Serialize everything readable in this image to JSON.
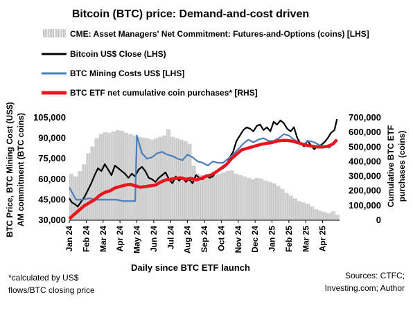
{
  "chart_data": {
    "type": "line",
    "title": "Bitcoin (BTC) price: Demand-and-cost driven",
    "xlabel": "Daily since BTC ETF launch",
    "ylabel_left": "BTC Price, BTC Mining Cost (US$)\nAM commitment (BTC coins)",
    "ylabel_right": "Cumulative BTC ETF\npurchases (coins)",
    "ylim_left": [
      30000,
      105000
    ],
    "yticks_left": [
      "30,000",
      "45,000",
      "60,000",
      "75,000",
      "90,000",
      "105,000"
    ],
    "ylim_right": [
      0,
      700000
    ],
    "yticks_right": [
      "0",
      "100,000",
      "200,000",
      "300,000",
      "400,000",
      "500,000",
      "600,000",
      "700,000"
    ],
    "x_tick_labels": [
      "Jan 24",
      "Feb 24",
      "Mar 24",
      "Apr 24",
      "May 24",
      "Jun 24",
      "Jul 24",
      "Aug 24",
      "Sep 24",
      "Oct 24",
      "Nov 24",
      "Dec 24",
      "Jan 25",
      "Feb 25",
      "Mar 25",
      "Apr 25"
    ],
    "x_month_index": [
      0,
      1,
      2,
      3,
      4,
      5,
      6,
      7,
      8,
      9,
      10,
      11,
      12,
      13,
      14,
      15
    ],
    "x_max_month": 16.0,
    "footnote": "*calculated by US$\nflows/BTC closing price",
    "sources": "Sources: CTFC;\nInvesting.com; Author",
    "legend": [
      {
        "label": "CME: Asset Managers' Net Commitment: Futures-and-Options (coins) [LHS]",
        "style": "bars",
        "color": "#c8c8c8"
      },
      {
        "label": "Bitcoin US$ Close (LHS)",
        "style": "line",
        "color": "#000000"
      },
      {
        "label": "BTC Mining Costs US$ [LHS]",
        "style": "line",
        "color": "#4a7ebb"
      },
      {
        "label": "BTC ETF net cumulative coin purchases* [RHS]",
        "style": "line",
        "color": "#e8141e"
      }
    ],
    "series": [
      {
        "name": "CME: Asset Managers' Net Commitment: Futures-and-Options (coins) [LHS]",
        "axis": "left",
        "style": "bars",
        "color": "#c8c8c8",
        "x": [
          0.0,
          0.25,
          0.5,
          0.75,
          1.0,
          1.25,
          1.5,
          1.75,
          2.0,
          2.25,
          2.5,
          2.75,
          3.0,
          3.25,
          3.5,
          3.75,
          4.0,
          4.25,
          4.5,
          4.75,
          5.0,
          5.25,
          5.5,
          5.75,
          6.0,
          6.25,
          6.5,
          6.75,
          7.0,
          7.25,
          7.5,
          7.75,
          8.0,
          8.25,
          8.5,
          8.75,
          9.0,
          9.25,
          9.5,
          9.75,
          10.0,
          10.25,
          10.5,
          10.75,
          11.0,
          11.25,
          11.5,
          11.75,
          12.0,
          12.25,
          12.5,
          12.75,
          13.0,
          13.25,
          13.5,
          13.75,
          14.0,
          14.25,
          14.5,
          14.75,
          15.0,
          15.25,
          15.5,
          15.75
        ],
        "values": [
          64000,
          62000,
          66000,
          71000,
          79000,
          84000,
          90000,
          93000,
          94500,
          94000,
          95000,
          96000,
          95500,
          94000,
          93000,
          92000,
          91000,
          90500,
          90000,
          89000,
          90000,
          91000,
          92000,
          96500,
          91000,
          90000,
          89000,
          88000,
          86000,
          70000,
          64000,
          63000,
          62000,
          62500,
          63000,
          64000,
          65000,
          66000,
          66500,
          64000,
          63000,
          62000,
          61000,
          60000,
          61000,
          60500,
          59000,
          58000,
          57000,
          55000,
          53000,
          50000,
          48000,
          46000,
          44000,
          43000,
          42000,
          40000,
          38000,
          37000,
          36000,
          35000,
          36500,
          34000
        ]
      },
      {
        "name": "Bitcoin US$ Close (LHS)",
        "axis": "left",
        "style": "line",
        "color": "#000000",
        "x": [
          0.0,
          0.15,
          0.3,
          0.5,
          0.7,
          0.9,
          1.1,
          1.3,
          1.5,
          1.7,
          1.9,
          2.1,
          2.3,
          2.5,
          2.7,
          2.9,
          3.1,
          3.3,
          3.5,
          3.7,
          3.9,
          4.1,
          4.3,
          4.5,
          4.7,
          4.9,
          5.1,
          5.3,
          5.5,
          5.7,
          5.9,
          6.1,
          6.3,
          6.5,
          6.7,
          6.9,
          7.1,
          7.3,
          7.5,
          7.7,
          7.9,
          8.1,
          8.3,
          8.5,
          8.7,
          8.9,
          9.1,
          9.3,
          9.5,
          9.7,
          9.9,
          10.1,
          10.3,
          10.5,
          10.7,
          10.9,
          11.1,
          11.3,
          11.5,
          11.7,
          11.9,
          12.1,
          12.3,
          12.5,
          12.7,
          12.9,
          13.1,
          13.3,
          13.5,
          13.7,
          13.9,
          14.1,
          14.3,
          14.5,
          14.7,
          14.9,
          15.1,
          15.3,
          15.5,
          15.7,
          15.85
        ],
        "values": [
          46000,
          43000,
          42000,
          40000,
          43500,
          47000,
          52000,
          57000,
          63000,
          68000,
          66000,
          71000,
          67000,
          63000,
          70000,
          68000,
          66000,
          64000,
          61000,
          64000,
          62000,
          67000,
          69000,
          66000,
          61000,
          60000,
          58000,
          61000,
          63000,
          65000,
          60000,
          57000,
          62000,
          59000,
          61000,
          58000,
          60000,
          57000,
          63000,
          61000,
          60000,
          63000,
          61000,
          62000,
          66000,
          67000,
          68000,
          70000,
          76000,
          80000,
          88000,
          92000,
          96000,
          98000,
          97000,
          95000,
          99000,
          100000,
          96000,
          98000,
          95000,
          102000,
          100000,
          103000,
          101000,
          97000,
          95000,
          98000,
          90000,
          86000,
          84000,
          88000,
          85000,
          82000,
          84000,
          85000,
          87000,
          90000,
          94000,
          96000,
          104000
        ]
      },
      {
        "name": "BTC Mining Costs US$ [LHS]",
        "axis": "left",
        "style": "line",
        "color": "#4a7ebb",
        "x": [
          0.0,
          0.4,
          0.8,
          1.2,
          1.6,
          2.0,
          2.4,
          2.8,
          3.2,
          3.5,
          3.9,
          4.0,
          4.3,
          4.6,
          4.9,
          5.2,
          5.5,
          5.8,
          6.1,
          6.4,
          6.7,
          7.0,
          7.3,
          7.6,
          7.9,
          8.2,
          8.5,
          8.8,
          9.1,
          9.4,
          9.7,
          10.0,
          10.3,
          10.6,
          10.9,
          11.2,
          11.5,
          11.8,
          12.1,
          12.4,
          12.7,
          13.0,
          13.3,
          13.6,
          13.9,
          14.2,
          14.5,
          14.8,
          15.1,
          15.4,
          15.7,
          15.85
        ],
        "values": [
          54000,
          45000,
          45000,
          46000,
          45000,
          45000,
          45000,
          45000,
          44000,
          44000,
          44000,
          92000,
          79000,
          75000,
          76000,
          79000,
          80000,
          78000,
          77000,
          75000,
          74000,
          78000,
          76000,
          73000,
          72000,
          70000,
          73000,
          72000,
          72000,
          75000,
          78000,
          82000,
          86000,
          89000,
          87000,
          89000,
          90000,
          88000,
          88000,
          90000,
          93000,
          92000,
          89000,
          87000,
          86000,
          88000,
          87000,
          85000,
          84000,
          83000,
          87000,
          89000
        ]
      },
      {
        "name": "BTC ETF net cumulative coin purchases* [RHS]",
        "axis": "right",
        "style": "line",
        "color": "#e8141e",
        "x": [
          0.0,
          0.3,
          0.6,
          0.9,
          1.2,
          1.5,
          1.8,
          2.1,
          2.4,
          2.7,
          3.0,
          3.3,
          3.6,
          3.9,
          4.2,
          4.5,
          4.8,
          5.1,
          5.4,
          5.7,
          6.0,
          6.3,
          6.6,
          6.9,
          7.2,
          7.5,
          7.8,
          8.1,
          8.4,
          8.7,
          9.0,
          9.3,
          9.6,
          9.9,
          10.2,
          10.5,
          10.8,
          11.1,
          11.4,
          11.7,
          12.0,
          12.3,
          12.6,
          12.9,
          13.2,
          13.5,
          13.8,
          14.1,
          14.4,
          14.7,
          15.0,
          15.3,
          15.6,
          15.85
        ],
        "values": [
          10000,
          40000,
          70000,
          100000,
          120000,
          140000,
          170000,
          190000,
          200000,
          220000,
          230000,
          240000,
          245000,
          235000,
          225000,
          230000,
          235000,
          240000,
          260000,
          275000,
          280000,
          285000,
          290000,
          280000,
          285000,
          275000,
          285000,
          300000,
          310000,
          330000,
          355000,
          380000,
          420000,
          450000,
          480000,
          490000,
          500000,
          510000,
          520000,
          525000,
          530000,
          540000,
          545000,
          545000,
          540000,
          530000,
          520000,
          510000,
          505000,
          500000,
          500000,
          505000,
          520000,
          550000
        ]
      }
    ]
  }
}
